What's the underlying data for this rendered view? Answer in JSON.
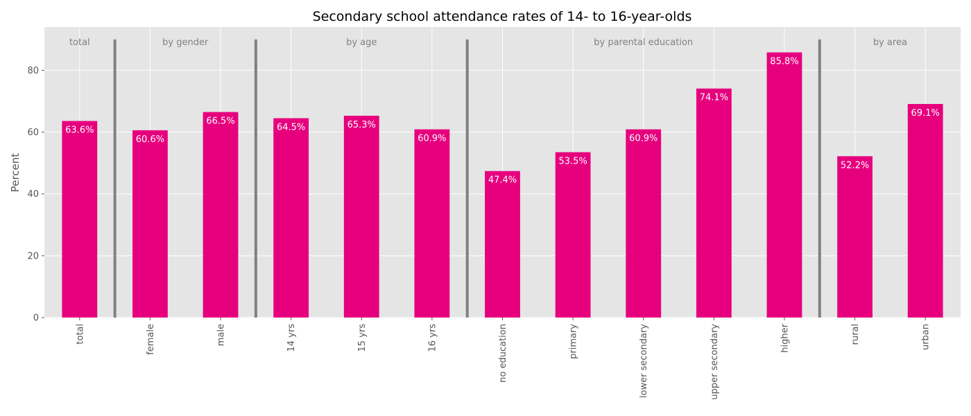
{
  "chart_data": {
    "type": "bar",
    "title": "Secondary school attendance rates of 14- to 16-year-olds",
    "xlabel": "",
    "ylabel": "Percent",
    "ylim": [
      0,
      94
    ],
    "yticks": [
      0,
      20,
      40,
      60,
      80
    ],
    "grid": true,
    "bar_color": "#e6007e",
    "separator_color": "#808080",
    "background_color": "#e5e5e5",
    "categories": [
      "total",
      "female",
      "male",
      "14 yrs",
      "15 yrs",
      "16 yrs",
      "no education",
      "primary",
      "lower secondary",
      "upper secondary",
      "higher",
      "rural",
      "urban"
    ],
    "values": [
      63.6,
      60.6,
      66.5,
      64.5,
      65.3,
      60.9,
      47.4,
      53.5,
      60.9,
      74.1,
      85.8,
      52.2,
      69.1
    ],
    "data_labels": [
      "63.6%",
      "60.6%",
      "66.5%",
      "64.5%",
      "65.3%",
      "60.9%",
      "47.4%",
      "53.5%",
      "60.9%",
      "74.1%",
      "85.8%",
      "52.2%",
      "69.1%"
    ],
    "groups": [
      {
        "label": "total",
        "start": 0,
        "end": 0
      },
      {
        "label": "by gender",
        "start": 1,
        "end": 2
      },
      {
        "label": "by age",
        "start": 3,
        "end": 5
      },
      {
        "label": "by parental education",
        "start": 6,
        "end": 10
      },
      {
        "label": "by area",
        "start": 11,
        "end": 12
      }
    ],
    "separator_height": 90
  }
}
